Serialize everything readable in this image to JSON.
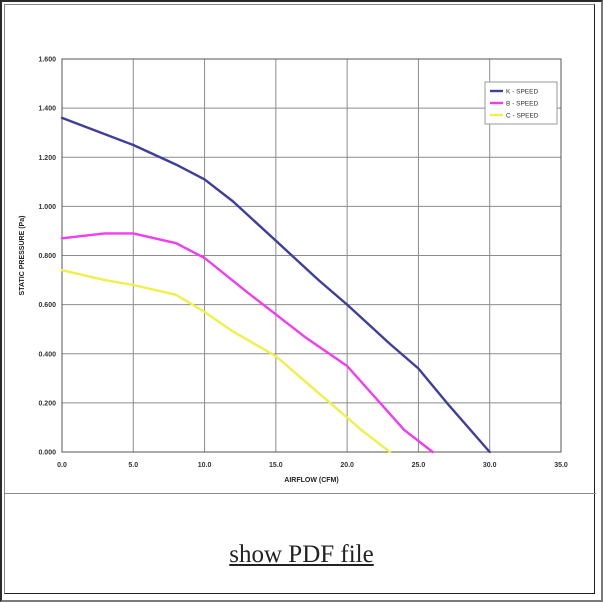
{
  "link": {
    "label": "show PDF file"
  },
  "chart_data": {
    "type": "line",
    "title": "",
    "xlabel": "AIRFLOW (CFM)",
    "ylabel": "STATIC PRESSURE (Pa)",
    "xlim": [
      0,
      35
    ],
    "ylim": [
      0,
      1.6
    ],
    "xticks": [
      "0.0",
      "5.0",
      "10.0",
      "15.0",
      "20.0",
      "25.0",
      "30.0",
      "35.0"
    ],
    "yticks": [
      "0.000",
      "0.200",
      "0.400",
      "0.600",
      "0.800",
      "1.000",
      "1.200",
      "1.400",
      "1.600"
    ],
    "grid": true,
    "legend_position": "top-right",
    "series": [
      {
        "name": "K - SPEED",
        "color": "#3d3f9a",
        "x": [
          0,
          5,
          8,
          10,
          12,
          15,
          18,
          20,
          23,
          25,
          27,
          30
        ],
        "y": [
          1.36,
          1.25,
          1.17,
          1.11,
          1.02,
          0.86,
          0.7,
          0.6,
          0.44,
          0.34,
          0.2,
          0.0
        ]
      },
      {
        "name": "B - SPEED",
        "color": "#ee3ef0",
        "x": [
          0,
          3,
          5,
          8,
          10,
          13,
          15,
          17,
          20,
          22,
          24,
          26
        ],
        "y": [
          0.87,
          0.89,
          0.89,
          0.85,
          0.79,
          0.65,
          0.56,
          0.47,
          0.35,
          0.22,
          0.09,
          0.0
        ]
      },
      {
        "name": "C - SPEED",
        "color": "#f0f04a",
        "x": [
          0,
          3,
          5,
          8,
          10,
          12,
          15,
          17,
          19,
          21,
          23
        ],
        "y": [
          0.74,
          0.7,
          0.68,
          0.64,
          0.57,
          0.49,
          0.39,
          0.29,
          0.19,
          0.09,
          0.0
        ]
      }
    ]
  }
}
